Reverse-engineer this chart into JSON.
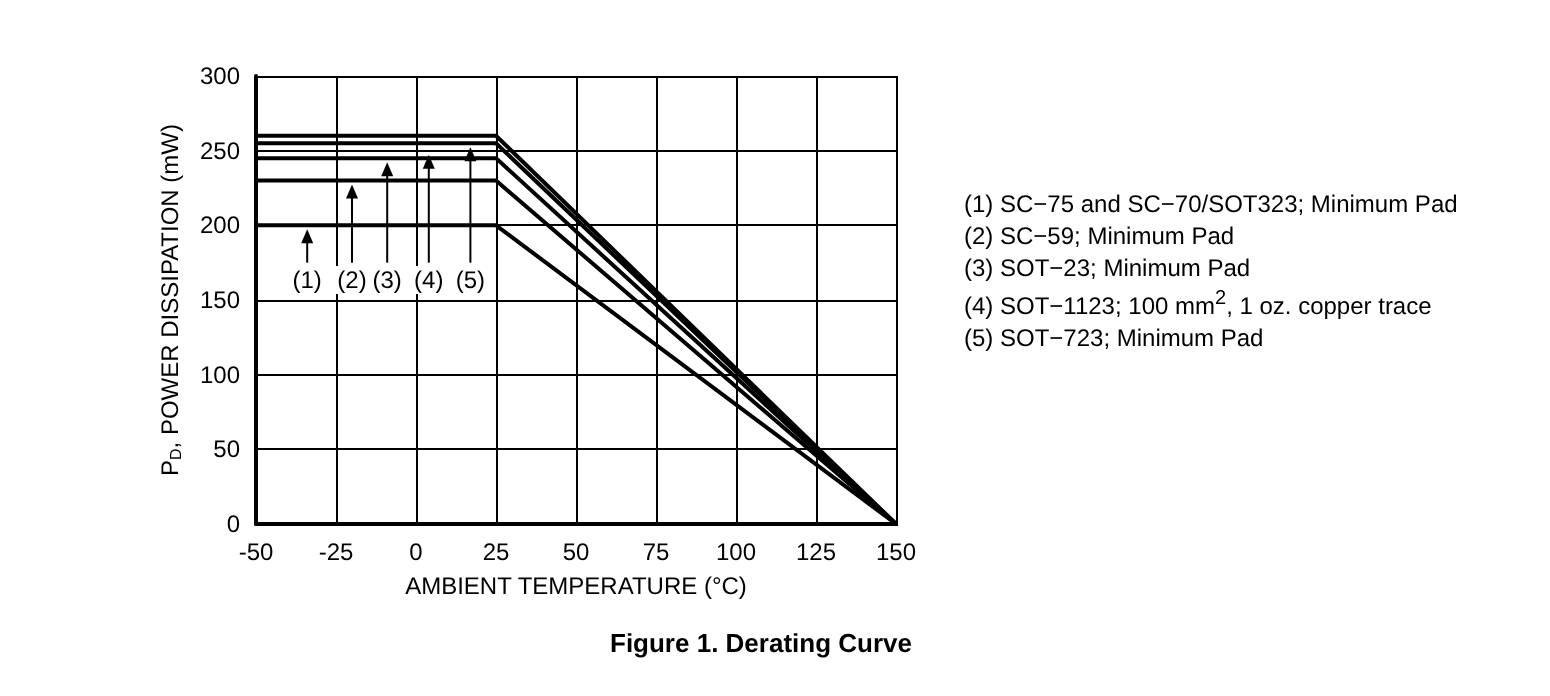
{
  "chart_data": {
    "type": "line",
    "title": "Figure 1. Derating Curve",
    "xlabel": "AMBIENT TEMPERATURE (°C)",
    "ylabel": "P$_{D}$, POWER DISSIPATION (mW)",
    "series": [
      {
        "color": "#000000",
        "x": [
          -50,
          25,
          150
        ],
        "values": [
          200,
          200,
          0
        ]
      },
      {
        "color": "#000000",
        "x": [
          -50,
          25,
          150
        ],
        "values": [
          230,
          230,
          0
        ]
      },
      {
        "color": "#000000",
        "x": [
          -50,
          25,
          150
        ],
        "values": [
          245,
          245,
          0
        ]
      },
      {
        "color": "#000000",
        "x": [
          -50,
          25,
          150
        ],
        "values": [
          255,
          255,
          0
        ]
      },
      {
        "color": "#000000",
        "x": [
          -50,
          25,
          150
        ],
        "values": [
          260,
          260,
          0
        ]
      }
    ],
    "xlim": [
      -50,
      150
    ],
    "xticks": [
      -50,
      -25,
      0,
      25,
      50,
      75,
      100,
      125,
      150
    ],
    "ylim": [
      0,
      300
    ],
    "yticks": [
      0,
      50,
      100,
      150,
      200,
      250,
      300
    ],
    "grid": true,
    "marker": "none",
    "line_style": "solid",
    "annotations": [
      {
        "text": "(1)",
        "x": -34,
        "y": 200
      },
      {
        "text": "(2)",
        "x": -20,
        "y": 230
      },
      {
        "text": "(3)",
        "x": -9,
        "y": 245
      },
      {
        "text": "(4)",
        "x": 4,
        "y": 250
      },
      {
        "text": "(5)",
        "x": 17,
        "y": 255
      },
      "(1) SC−75 and SC−70/SOT323; Minimum Pad",
      "(2) SC−59; Minimum Pad",
      "(3) SOT−23; Minimum Pad",
      "(4) SOT−1123; 100 mm$^{2}$, 1 oz. copper trace",
      "(5) SOT−723; Minimum Pad"
    ]
  }
}
